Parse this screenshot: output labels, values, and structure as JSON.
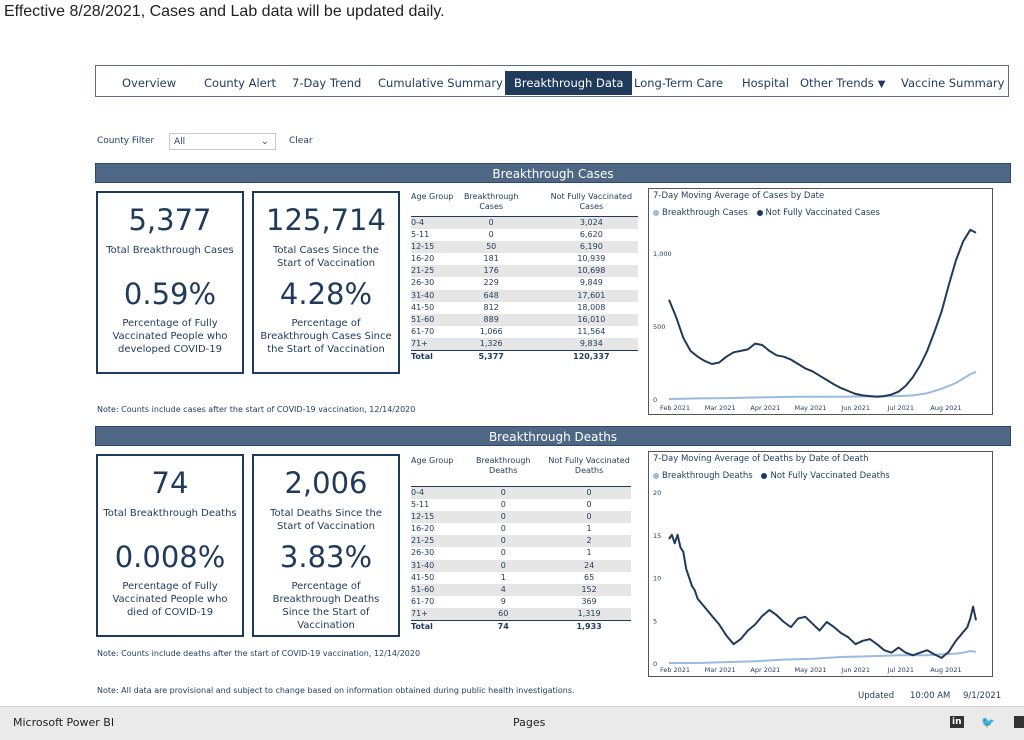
{
  "banner": "Effective 8/28/2021, Cases and Lab data will be updated daily.",
  "nav": {
    "tabs": [
      "Overview",
      "County Alert",
      "7-Day Trend",
      "Cumulative Summary",
      "Breakthrough Data",
      "Long-Term Care",
      "Hospital",
      "Other Trends",
      "Vaccine Summary"
    ],
    "active": "Breakthrough Data",
    "dropdown_arrow": "▼"
  },
  "filter": {
    "label": "County Filter",
    "value": "All",
    "clear": "Clear"
  },
  "cases": {
    "header": "Breakthrough Cases",
    "kpi1": {
      "value": "5,377",
      "label": "Total Breakthrough Cases",
      "pct": "0.59%",
      "pct_label": "Percentage of Fully Vaccinated People who developed COVID-19"
    },
    "kpi2": {
      "value": "125,714",
      "label": "Total Cases Since the Start of Vaccination",
      "pct": "4.28%",
      "pct_label": "Percentage of Breakthrough Cases Since the Start of Vaccination"
    },
    "table": {
      "headers": [
        "Age Group",
        "Breakthrough Cases",
        "Not Fully Vaccinated Cases"
      ],
      "rows": [
        [
          "0-4",
          "0",
          "3,024"
        ],
        [
          "5-11",
          "0",
          "6,620"
        ],
        [
          "12-15",
          "50",
          "6,190"
        ],
        [
          "16-20",
          "181",
          "10,939"
        ],
        [
          "21-25",
          "176",
          "10,698"
        ],
        [
          "26-30",
          "229",
          "9,849"
        ],
        [
          "31-40",
          "648",
          "17,601"
        ],
        [
          "41-50",
          "812",
          "18,008"
        ],
        [
          "51-60",
          "889",
          "16,010"
        ],
        [
          "61-70",
          "1,066",
          "11,564"
        ],
        [
          "71+",
          "1,326",
          "9,834"
        ]
      ],
      "total": [
        "Total",
        "5,377",
        "120,337"
      ]
    },
    "note": "Note: Counts include cases after the start of COVID-19 vaccination, 12/14/2020"
  },
  "deaths": {
    "header": "Breakthrough Deaths",
    "kpi1": {
      "value": "74",
      "label": "Total Breakthrough Deaths",
      "pct": "0.008%",
      "pct_label": "Percentage of Fully Vaccinated People who died of COVID-19"
    },
    "kpi2": {
      "value": "2,006",
      "label": "Total Deaths Since the Start of Vaccination",
      "pct": "3.83%",
      "pct_label": "Percentage of Breakthrough Deaths Since the Start of Vaccination"
    },
    "table": {
      "headers": [
        "Age Group",
        "Breakthrough Deaths",
        "Not Fully Vaccinated Deaths"
      ],
      "rows": [
        [
          "0-4",
          "0",
          "0"
        ],
        [
          "5-11",
          "0",
          "0"
        ],
        [
          "12-15",
          "0",
          "0"
        ],
        [
          "16-20",
          "0",
          "1"
        ],
        [
          "21-25",
          "0",
          "2"
        ],
        [
          "26-30",
          "0",
          "1"
        ],
        [
          "31-40",
          "0",
          "24"
        ],
        [
          "41-50",
          "1",
          "65"
        ],
        [
          "51-60",
          "4",
          "152"
        ],
        [
          "61-70",
          "9",
          "369"
        ],
        [
          "71+",
          "60",
          "1,319"
        ]
      ],
      "total": [
        "Total",
        "74",
        "1,933"
      ]
    },
    "note": "Note: Counts include deaths after the start of COVID-19 vaccination, 12/14/2020"
  },
  "footnote": "Note: All data are provisional and subject to change based on information obtained during public health investigations.",
  "updated": {
    "label": "Updated",
    "time": "10:00 AM",
    "date": "9/1/2021"
  },
  "footer": {
    "brand": "Microsoft Power BI",
    "pages": "Pages",
    "linkedin": "in",
    "twitter": "🐦"
  },
  "colors": {
    "dark": "#1f3a5a",
    "light": "#9bbbe0",
    "header_bg": "#4d6785"
  },
  "chart_data": [
    {
      "type": "line",
      "title": "7-Day Moving Average of Cases by Date",
      "legend": [
        "Breakthrough Cases",
        "Not Fully Vaccinated Cases"
      ],
      "x_ticks": [
        "Feb 2021",
        "Mar 2021",
        "Apr 2021",
        "May 2021",
        "Jun 2021",
        "Jul 2021",
        "Aug 2021"
      ],
      "y_ticks": [
        "0",
        "500",
        "1,000"
      ],
      "ylim": [
        0,
        1200
      ],
      "x_range": [
        "2021-01-25",
        "2021-09-01"
      ],
      "series": [
        {
          "name": "Not Fully Vaccinated Cases",
          "x": [
            0,
            5,
            10,
            15,
            20,
            25,
            30,
            35,
            40,
            45,
            50,
            55,
            60,
            65,
            70,
            75,
            80,
            85,
            90,
            95,
            100,
            105,
            110,
            115,
            120,
            125,
            130,
            135,
            140,
            145,
            150,
            155,
            160,
            165,
            170,
            175,
            180,
            185,
            190,
            195,
            200,
            205,
            210,
            214
          ],
          "values": [
            680,
            560,
            420,
            330,
            290,
            260,
            240,
            250,
            290,
            320,
            330,
            340,
            380,
            370,
            330,
            300,
            290,
            270,
            240,
            210,
            190,
            160,
            130,
            100,
            75,
            55,
            35,
            25,
            20,
            15,
            20,
            30,
            50,
            90,
            150,
            230,
            330,
            460,
            600,
            780,
            950,
            1080,
            1160,
            1140
          ]
        },
        {
          "name": "Breakthrough Cases",
          "x": [
            0,
            10,
            20,
            30,
            40,
            50,
            60,
            70,
            80,
            90,
            100,
            110,
            120,
            130,
            140,
            150,
            160,
            170,
            180,
            190,
            200,
            205,
            210,
            214
          ],
          "values": [
            0,
            2,
            4,
            5,
            6,
            8,
            10,
            12,
            14,
            15,
            16,
            16,
            16,
            17,
            18,
            19,
            20,
            25,
            40,
            70,
            110,
            140,
            170,
            185
          ]
        }
      ]
    },
    {
      "type": "line",
      "title": "7-Day Moving Average of Deaths by Date of Death",
      "legend": [
        "Breakthrough Deaths",
        "Not Fully Vaccinated Deaths"
      ],
      "x_ticks": [
        "Feb 2021",
        "Mar 2021",
        "Apr 2021",
        "May 2021",
        "Jun 2021",
        "Jul 2021",
        "Aug 2021"
      ],
      "y_ticks": [
        "0",
        "5",
        "10",
        "15",
        "20"
      ],
      "ylim": [
        0,
        20
      ],
      "x_range": [
        "2021-01-25",
        "2021-09-01"
      ],
      "series": [
        {
          "name": "Not Fully Vaccinated Deaths",
          "x": [
            0,
            2,
            4,
            6,
            8,
            10,
            12,
            14,
            16,
            18,
            20,
            25,
            30,
            35,
            40,
            45,
            50,
            55,
            60,
            65,
            70,
            75,
            80,
            85,
            90,
            95,
            100,
            105,
            110,
            115,
            120,
            125,
            130,
            135,
            140,
            145,
            150,
            155,
            160,
            165,
            170,
            175,
            180,
            185,
            190,
            195,
            200,
            205,
            208,
            210,
            212,
            214
          ],
          "values": [
            14.5,
            15,
            14,
            15,
            13.5,
            13,
            11,
            10,
            9,
            8.5,
            7.5,
            6.5,
            5.5,
            4.5,
            3.2,
            2.2,
            2.8,
            3.8,
            4.5,
            5.5,
            6.2,
            5.6,
            4.8,
            4.2,
            5.2,
            5.4,
            4.6,
            3.8,
            4.8,
            4.2,
            3.5,
            3.0,
            2.2,
            2.6,
            2.8,
            2.2,
            1.5,
            1.2,
            1.8,
            1.2,
            0.9,
            1.2,
            1.5,
            1.0,
            0.6,
            1.3,
            2.6,
            3.6,
            4.2,
            5.2,
            6.6,
            5.0
          ]
        },
        {
          "name": "Breakthrough Deaths",
          "x": [
            0,
            20,
            40,
            60,
            80,
            100,
            120,
            140,
            160,
            180,
            190,
            200,
            205,
            210,
            214
          ],
          "values": [
            0,
            0,
            0.1,
            0.2,
            0.4,
            0.5,
            0.7,
            0.8,
            0.9,
            0.9,
            1.0,
            1.1,
            1.2,
            1.4,
            1.3
          ]
        }
      ]
    }
  ]
}
